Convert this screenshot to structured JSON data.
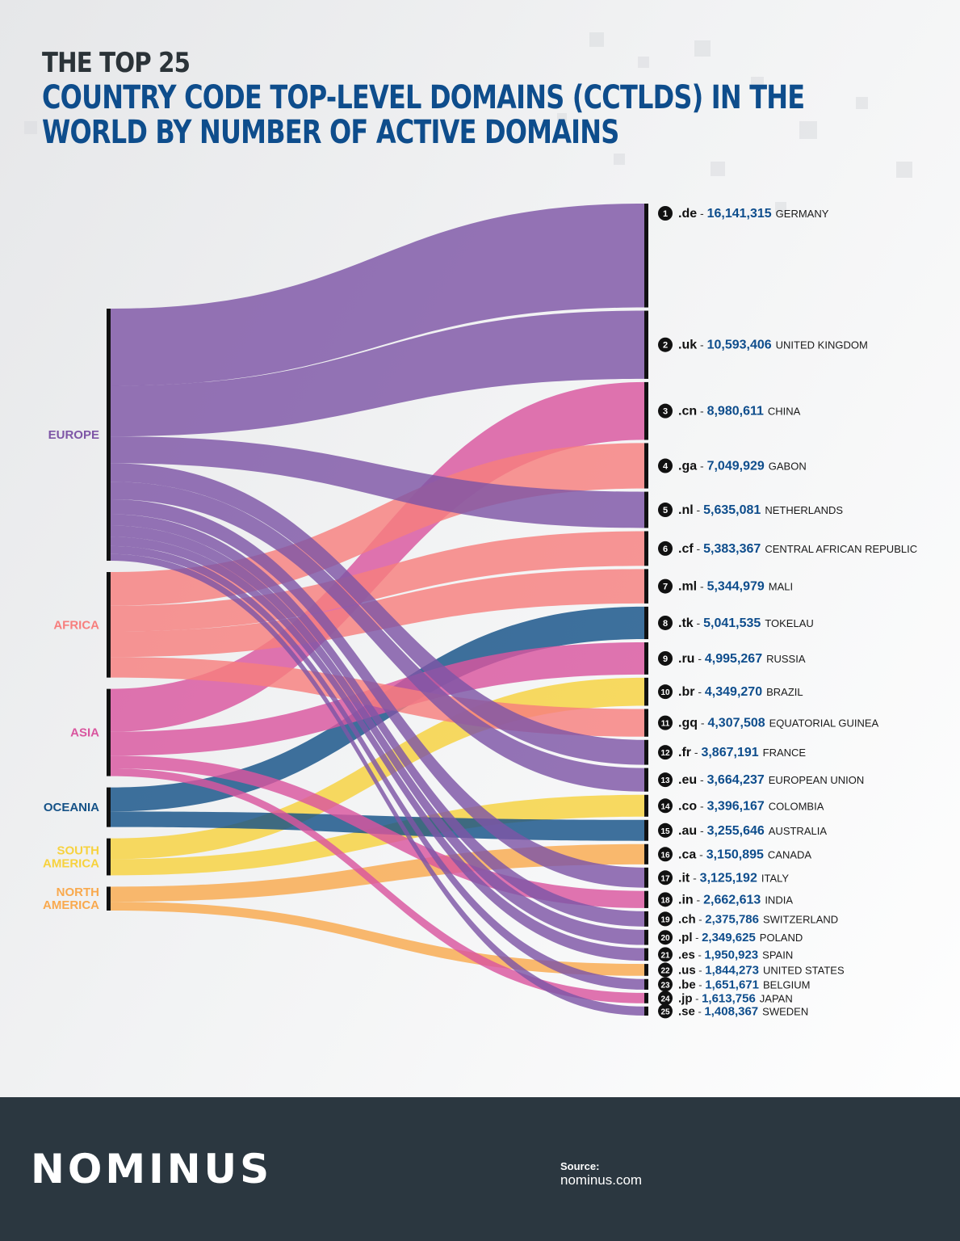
{
  "header": {
    "title_top": "THE TOP 25",
    "title_main": "COUNTRY CODE TOP-LEVEL DOMAINS (CCTLDS) IN THE WORLD BY NUMBER OF ACTIVE DOMAINS"
  },
  "colors": {
    "europe": "#7e56a6",
    "africa": "#f77f7e",
    "asia": "#d9569f",
    "oceania": "#155287",
    "south_america": "#f7d23e",
    "north_america": "#f9a94e",
    "rank_text": "#0e4d8c",
    "label_text": "#1a1a1a"
  },
  "chart_data": {
    "type": "sankey",
    "title": "COUNTRY CODE TOP-LEVEL DOMAINS (CCTLDS) IN THE WORLD BY NUMBER OF ACTIVE DOMAINS",
    "unit": "active domains",
    "sources": [
      {
        "key": "europe",
        "label": "EUROPE"
      },
      {
        "key": "africa",
        "label": "AFRICA"
      },
      {
        "key": "asia",
        "label": "ASIA"
      },
      {
        "key": "oceania",
        "label": "OCEANIA"
      },
      {
        "key": "south_america",
        "label": "SOUTH AMERICA"
      },
      {
        "key": "north_america",
        "label": "NORTH AMERICA"
      }
    ],
    "targets": [
      {
        "rank": 1,
        "tld": ".de",
        "value": 16141315,
        "value_label": "16,141,315",
        "country": "GERMANY",
        "region": "europe"
      },
      {
        "rank": 2,
        "tld": ".uk",
        "value": 10593406,
        "value_label": "10,593,406",
        "country": "UNITED KINGDOM",
        "region": "europe"
      },
      {
        "rank": 3,
        "tld": ".cn",
        "value": 8980611,
        "value_label": "8,980,611",
        "country": "CHINA",
        "region": "asia"
      },
      {
        "rank": 4,
        "tld": ".ga",
        "value": 7049929,
        "value_label": "7,049,929",
        "country": "GABON",
        "region": "africa"
      },
      {
        "rank": 5,
        "tld": ".nl",
        "value": 5635081,
        "value_label": "5,635,081",
        "country": "NETHERLANDS",
        "region": "europe"
      },
      {
        "rank": 6,
        "tld": ".cf",
        "value": 5383367,
        "value_label": "5,383,367",
        "country": "CENTRAL AFRICAN REPUBLIC",
        "region": "africa"
      },
      {
        "rank": 7,
        "tld": ".ml",
        "value": 5344979,
        "value_label": "5,344,979",
        "country": "MALI",
        "region": "africa"
      },
      {
        "rank": 8,
        "tld": ".tk",
        "value": 5041535,
        "value_label": "5,041,535",
        "country": "TOKELAU",
        "region": "oceania"
      },
      {
        "rank": 9,
        "tld": ".ru",
        "value": 4995267,
        "value_label": "4,995,267",
        "country": "RUSSIA",
        "region": "asia"
      },
      {
        "rank": 10,
        "tld": ".br",
        "value": 4349270,
        "value_label": "4,349,270",
        "country": "BRAZIL",
        "region": "south_america"
      },
      {
        "rank": 11,
        "tld": ".gq",
        "value": 4307508,
        "value_label": "4,307,508",
        "country": "EQUATORIAL GUINEA",
        "region": "africa"
      },
      {
        "rank": 12,
        "tld": ".fr",
        "value": 3867191,
        "value_label": "3,867,191",
        "country": "FRANCE",
        "region": "europe"
      },
      {
        "rank": 13,
        "tld": ".eu",
        "value": 3664237,
        "value_label": "3,664,237",
        "country": "EUROPEAN UNION",
        "region": "europe"
      },
      {
        "rank": 14,
        "tld": ".co",
        "value": 3396167,
        "value_label": "3,396,167",
        "country": "COLOMBIA",
        "region": "south_america"
      },
      {
        "rank": 15,
        "tld": ".au",
        "value": 3255646,
        "value_label": "3,255,646",
        "country": "AUSTRALIA",
        "region": "oceania"
      },
      {
        "rank": 16,
        "tld": ".ca",
        "value": 3150895,
        "value_label": "3,150,895",
        "country": "CANADA",
        "region": "north_america"
      },
      {
        "rank": 17,
        "tld": ".it",
        "value": 3125192,
        "value_label": "3,125,192",
        "country": "ITALY",
        "region": "europe"
      },
      {
        "rank": 18,
        "tld": ".in",
        "value": 2662613,
        "value_label": "2,662,613",
        "country": "INDIA",
        "region": "asia"
      },
      {
        "rank": 19,
        "tld": ".ch",
        "value": 2375786,
        "value_label": "2,375,786",
        "country": "SWITZERLAND",
        "region": "europe"
      },
      {
        "rank": 20,
        "tld": ".pl",
        "value": 2349625,
        "value_label": "2,349,625",
        "country": "POLAND",
        "region": "europe"
      },
      {
        "rank": 21,
        "tld": ".es",
        "value": 1950923,
        "value_label": "1,950,923",
        "country": "SPAIN",
        "region": "europe"
      },
      {
        "rank": 22,
        "tld": ".us",
        "value": 1844273,
        "value_label": "1,844,273",
        "country": "UNITED STATES",
        "region": "north_america"
      },
      {
        "rank": 23,
        "tld": ".be",
        "value": 1651671,
        "value_label": "1,651,671",
        "country": "BELGIUM",
        "region": "europe"
      },
      {
        "rank": 24,
        "tld": ".jp",
        "value": 1613756,
        "value_label": "1,613,756",
        "country": "JAPAN",
        "region": "asia"
      },
      {
        "rank": 25,
        "tld": ".se",
        "value": 1408367,
        "value_label": "1,408,367",
        "country": "SWEDEN",
        "region": "europe"
      }
    ]
  },
  "footer": {
    "logo": "NOMINUS",
    "source_label": "Source:",
    "source_value": "nominus.com"
  }
}
